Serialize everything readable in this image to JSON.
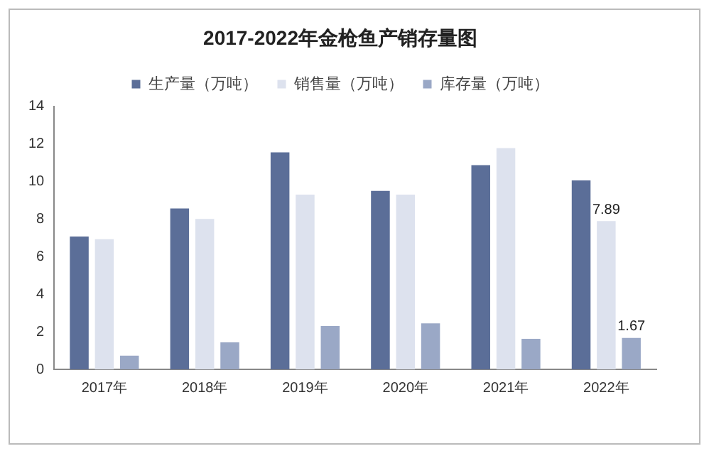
{
  "chart_data": {
    "type": "bar",
    "title": "2017-2022年金枪鱼产销存量图",
    "categories": [
      "2017年",
      "2018年",
      "2019年",
      "2020年",
      "2021年",
      "2022年"
    ],
    "series": [
      {
        "name": "生产量（万吨）",
        "color": "#5b6e98",
        "values": [
          7.07,
          8.56,
          11.55,
          9.5,
          10.87,
          10.05
        ]
      },
      {
        "name": "销售量（万吨）",
        "color": "#dde2ee",
        "values": [
          6.93,
          8.0,
          9.3,
          9.3,
          11.77,
          7.89
        ],
        "value_labels": [
          null,
          null,
          null,
          null,
          null,
          "7.89"
        ]
      },
      {
        "name": "库存量（万吨）",
        "color": "#9aa8c6",
        "values": [
          0.73,
          1.44,
          2.31,
          2.45,
          1.63,
          1.67
        ],
        "value_labels": [
          null,
          null,
          null,
          null,
          null,
          "1.67"
        ]
      }
    ],
    "ylim": [
      0,
      14
    ],
    "yticks": [
      0,
      2,
      4,
      6,
      8,
      10,
      12,
      14
    ],
    "grid": false,
    "legend": "top"
  }
}
